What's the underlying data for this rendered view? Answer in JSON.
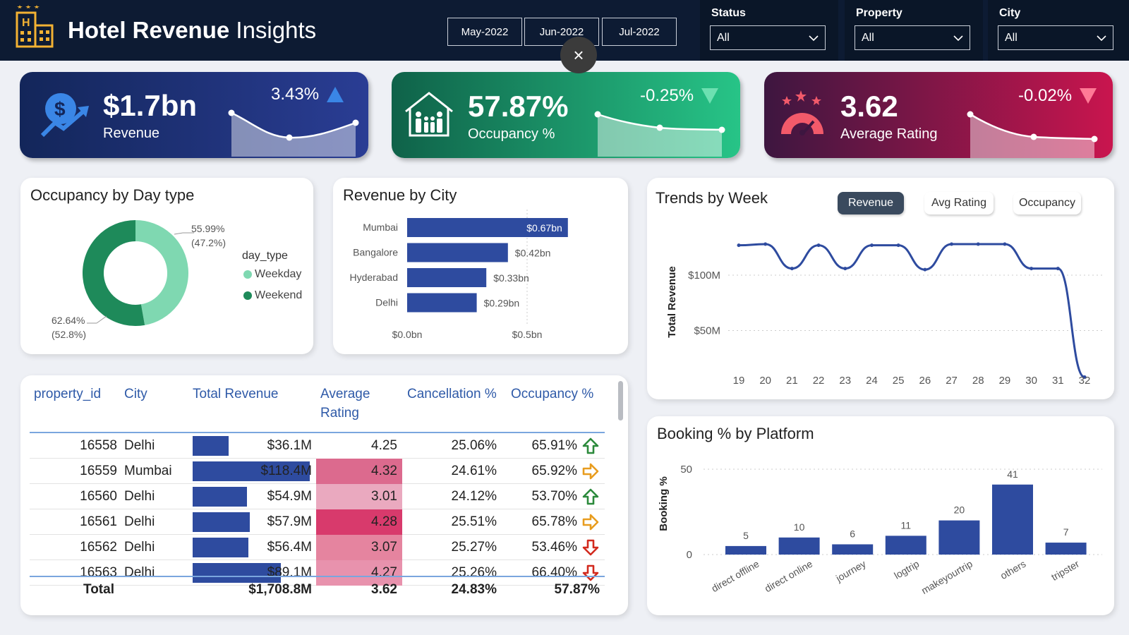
{
  "header": {
    "title_bold": "Hotel Revenue",
    "title_rest": " Insights",
    "months": [
      "May-2022",
      "Jun-2022",
      "Jul-2022"
    ],
    "clear_icon": "×",
    "filters": [
      {
        "label": "Status",
        "value": "All"
      },
      {
        "label": "Property",
        "value": "All"
      },
      {
        "label": "City",
        "value": "All"
      }
    ]
  },
  "kpis": [
    {
      "value": "$1.7bn",
      "label": "Revenue",
      "delta": "3.43%",
      "direction": "up",
      "icon": "dollar-growth-icon"
    },
    {
      "value": "57.87%",
      "label": "Occupancy %",
      "delta": "-0.25%",
      "direction": "down",
      "icon": "house-family-icon"
    },
    {
      "value": "3.62",
      "label": "Average Rating",
      "delta": "-0.02%",
      "direction": "down",
      "icon": "rating-gauge-icon"
    }
  ],
  "occupancy_day": {
    "title": "Occupancy by Day type",
    "legend_title": "day_type",
    "legend": [
      {
        "name": "Weekday",
        "color": "#7fd8b1"
      },
      {
        "name": "Weekend",
        "color": "#1e8a5a"
      }
    ],
    "labels": [
      {
        "line1": "55.99%",
        "line2": "(47.2%)"
      },
      {
        "line1": "62.64%",
        "line2": "(52.8%)"
      }
    ]
  },
  "revenue_city": {
    "title": "Revenue by City",
    "x_ticks": [
      "$0.0bn",
      "$0.5bn"
    ]
  },
  "trends": {
    "title": "Trends by Week",
    "buttons": [
      "Revenue",
      "Avg Rating",
      "Occupancy"
    ],
    "y_axis_label": "Total Revenue",
    "y_ticks": [
      "$100M",
      "$50M"
    ]
  },
  "platform": {
    "title": "Booking % by Platform",
    "y_axis_label": "Booking %",
    "y_ticks": [
      "50",
      "0"
    ]
  },
  "table": {
    "headers": [
      "property_id",
      "City",
      "Total Revenue",
      "Average\nRating",
      "Cancellation %",
      "Occupancy %"
    ],
    "rows": [
      {
        "id": "16558",
        "city": "Delhi",
        "revenue": "$36.1M",
        "revenue_value": 36.1,
        "rating": "4.25",
        "rating_color": "#ffffff",
        "cancel": "25.06%",
        "occupancy": "65.91%",
        "trend": "up"
      },
      {
        "id": "16559",
        "city": "Mumbai",
        "revenue": "$118.4M",
        "revenue_value": 118.4,
        "rating": "4.32",
        "rating_color": "#dc6a8e",
        "cancel": "24.61%",
        "occupancy": "65.92%",
        "trend": "flat"
      },
      {
        "id": "16560",
        "city": "Delhi",
        "revenue": "$54.9M",
        "revenue_value": 54.9,
        "rating": "3.01",
        "rating_color": "#eaa9bf",
        "cancel": "24.12%",
        "occupancy": "53.70%",
        "trend": "up"
      },
      {
        "id": "16561",
        "city": "Delhi",
        "revenue": "$57.9M",
        "revenue_value": 57.9,
        "rating": "4.28",
        "rating_color": "#d83a6c",
        "cancel": "25.51%",
        "occupancy": "65.78%",
        "trend": "flat"
      },
      {
        "id": "16562",
        "city": "Delhi",
        "revenue": "$56.4M",
        "revenue_value": 56.4,
        "rating": "3.07",
        "rating_color": "#e5849f",
        "cancel": "25.27%",
        "occupancy": "53.46%",
        "trend": "down"
      },
      {
        "id": "16563",
        "city": "Delhi",
        "revenue": "$89.1M",
        "revenue_value": 89.1,
        "rating": "4.27",
        "rating_color": "#e892ad",
        "cancel": "25.26%",
        "occupancy": "66.40%",
        "trend": "down"
      }
    ],
    "total": {
      "label": "Total",
      "revenue": "$1,708.8M",
      "rating": "3.62",
      "cancel": "24.83%",
      "occupancy": "57.87%"
    }
  },
  "chart_data": [
    {
      "type": "pie",
      "title": "Occupancy by Day type",
      "categories": [
        "Weekday",
        "Weekend"
      ],
      "values": [
        55.99,
        62.64
      ],
      "shares": [
        47.2,
        52.8
      ]
    },
    {
      "type": "bar",
      "title": "Revenue by City",
      "categories": [
        "Mumbai",
        "Bangalore",
        "Hyderabad",
        "Delhi"
      ],
      "values": [
        0.67,
        0.42,
        0.33,
        0.29
      ],
      "value_labels": [
        "$0.67bn",
        "$0.42bn",
        "$0.33bn",
        "$0.29bn"
      ],
      "xlim": [
        0,
        0.67
      ]
    },
    {
      "type": "line",
      "title": "Trends by Week",
      "x": [
        19,
        20,
        21,
        22,
        23,
        24,
        25,
        26,
        27,
        28,
        29,
        30,
        31,
        32
      ],
      "values": [
        127,
        128,
        106,
        127,
        106,
        127,
        127,
        105,
        128,
        128,
        128,
        106,
        106,
        8
      ],
      "ylabel": "Total Revenue",
      "ylim": [
        0,
        150
      ]
    },
    {
      "type": "bar",
      "title": "Booking % by Platform",
      "categories": [
        "direct offline",
        "direct online",
        "journey",
        "logtrip",
        "makeyourtrip",
        "others",
        "tripster"
      ],
      "values": [
        5,
        10,
        6,
        11,
        20,
        41,
        7
      ],
      "ylabel": "Booking %",
      "ylim": [
        0,
        50
      ]
    }
  ]
}
